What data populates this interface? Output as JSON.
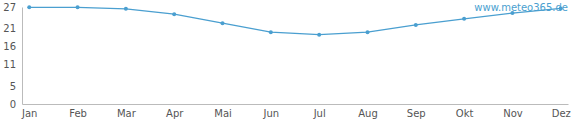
{
  "chart_data": {
    "type": "line",
    "categories": [
      "Jan",
      "Feb",
      "Mar",
      "Apr",
      "Mai",
      "Jun",
      "Jul",
      "Aug",
      "Sep",
      "Okt",
      "Nov",
      "Dez"
    ],
    "values": [
      26.9,
      26.9,
      26.5,
      25.0,
      22.5,
      20.0,
      19.3,
      20.0,
      22.0,
      23.7,
      25.3,
      26.6
    ],
    "color": "#4a9fd0",
    "marker": "circle",
    "ylim": [
      0,
      27
    ],
    "yticks": [
      0,
      5,
      11,
      16,
      21,
      27
    ],
    "grid": false,
    "annotations": [
      "www.meteo365.de"
    ]
  }
}
